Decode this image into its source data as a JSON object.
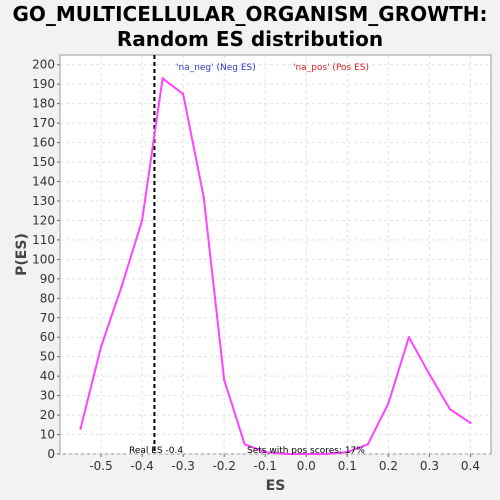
{
  "chart_data": {
    "type": "line",
    "title_line1": "GO_MULTICELLULAR_ORGANISM_GROWTH:",
    "title_line2": "Random ES distribution",
    "xlabel": "ES",
    "ylabel": "P(ES)",
    "xlim": [
      -0.6,
      0.45
    ],
    "ylim": [
      0,
      205
    ],
    "xticks": [
      "-0.5",
      "-0.4",
      "-0.3",
      "-0.2",
      "-0.1",
      "0.0",
      "0.1",
      "0.2",
      "0.3",
      "0.4"
    ],
    "xtick_values": [
      -0.5,
      -0.4,
      -0.3,
      -0.2,
      -0.1,
      0.0,
      0.1,
      0.2,
      0.3,
      0.4
    ],
    "yticks": [
      0,
      10,
      20,
      30,
      40,
      50,
      60,
      70,
      80,
      90,
      100,
      110,
      120,
      130,
      140,
      150,
      160,
      170,
      180,
      190,
      200
    ],
    "grid": true,
    "series": [
      {
        "color": "#ff44ff",
        "x": [
          -0.55,
          -0.5,
          -0.45,
          -0.4,
          -0.35,
          -0.3,
          -0.25,
          -0.2,
          -0.15,
          -0.1,
          -0.05,
          0.0,
          0.05,
          0.1,
          0.15,
          0.2,
          0.25,
          0.3,
          0.35,
          0.4
        ],
        "y": [
          13,
          55,
          86,
          120,
          193,
          185,
          132,
          38,
          5,
          1,
          0,
          0,
          0,
          1,
          5,
          26,
          60,
          41,
          23,
          16
        ]
      }
    ],
    "real_es": -0.37,
    "real_es_label": "Real ES -0.4",
    "sets_label": "Sets with pos scores: 17%",
    "legend": [
      {
        "label": "'na_neg' (Neg ES)",
        "color": "#3333cc"
      },
      {
        "label": "'na_pos' (Pos ES)",
        "color": "#dd2222"
      }
    ]
  }
}
